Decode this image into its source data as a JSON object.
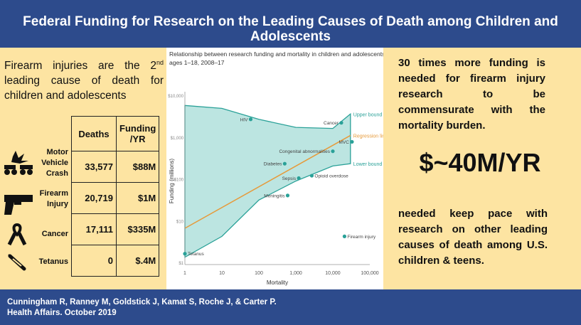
{
  "title": "Federal Funding for Research on the Leading Causes of Death among Children and Adolescents",
  "left": {
    "heading_pre": "Firearm injuries are the 2",
    "heading_sup": "nd",
    "heading_post": " leading cause of death for children and adolescents",
    "table": {
      "headers": [
        "Deaths",
        "Funding /YR"
      ],
      "rows": [
        {
          "label": "Motor Vehicle Crash",
          "deaths": "33,577",
          "funding": "$88M",
          "icon": "car-crash-icon"
        },
        {
          "label": "Firearm Injury",
          "deaths": "20,719",
          "funding": "$1M",
          "icon": "handgun-icon"
        },
        {
          "label": "Cancer",
          "deaths": "17,111",
          "funding": "$335M",
          "icon": "awareness-ribbon-icon"
        },
        {
          "label": "Tetanus",
          "deaths": "0",
          "funding": "$.4M",
          "icon": "syringe-icon"
        }
      ]
    }
  },
  "chart_data": {
    "type": "scatter",
    "title": "Relationship between research funding and mortality in children and adolescents ages 1–18, 2008–17",
    "xlabel": "Mortality",
    "ylabel": "Funding (millions)",
    "xscale": "log",
    "xlim": [
      1,
      100000
    ],
    "ylim": [
      0,
      10000
    ],
    "x_ticks": [
      "1",
      "10",
      "100",
      "1,000",
      "10,000",
      "100,000"
    ],
    "y_ticks": [
      "$10,000",
      "$1,000",
      "$100",
      "$10",
      "$1"
    ],
    "points": [
      {
        "label": "HIV",
        "x": 60,
        "y": 2500
      },
      {
        "label": "Cancer",
        "x": 17000,
        "y": 2000
      },
      {
        "label": "MVC",
        "x": 33000,
        "y": 600
      },
      {
        "label": "Congenital abnormalities",
        "x": 10000,
        "y": 330
      },
      {
        "label": "Diabetes",
        "x": 500,
        "y": 150
      },
      {
        "label": "Sepsis",
        "x": 1200,
        "y": 60
      },
      {
        "label": "Opioid overdose",
        "x": 2700,
        "y": 70
      },
      {
        "label": "Meningitis",
        "x": 600,
        "y": 20
      },
      {
        "label": "Firearm injury",
        "x": 20700,
        "y": 1.5
      },
      {
        "label": "Tetanus",
        "x": 1,
        "y": 0.5
      }
    ],
    "lines": [
      "Upper bound",
      "Regression line",
      "Lower bound"
    ],
    "colors": {
      "band": "#8fd3cd",
      "band_edge": "#2aa198",
      "regression": "#e69a3a",
      "point": "#2aa198"
    }
  },
  "right": {
    "top": "30 times more funding is needed for firearm injury research to be commensurate with the mortality burden.",
    "big": "$~40M/YR",
    "bottom": "needed keep pace with research on other leading causes of death among U.S. children & teens."
  },
  "footer": "Cunningham R, Ranney M, Goldstick J, Kamat S, Roche J, & Carter P. Health Affairs. October 2019"
}
